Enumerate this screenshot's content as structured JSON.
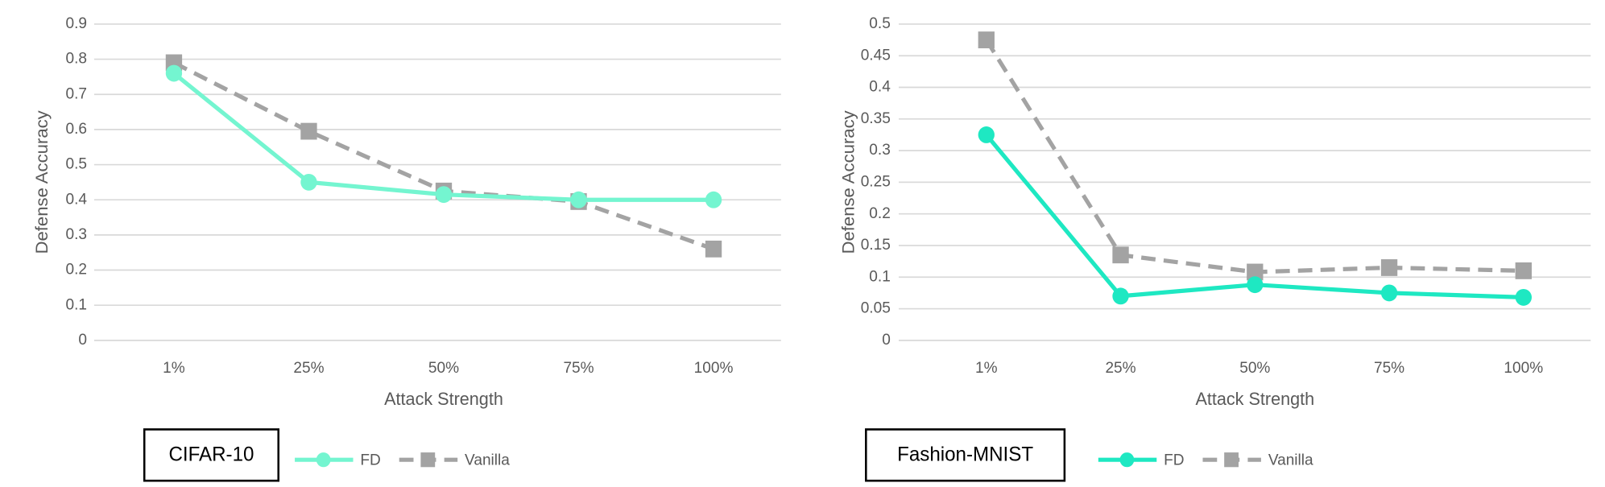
{
  "chart_data": [
    {
      "type": "line",
      "title": "CIFAR-10",
      "x_label": "Attack Strength",
      "y_label": "Defense Accuracy",
      "categories": [
        "1%",
        "25%",
        "50%",
        "75%",
        "100%"
      ],
      "series": [
        {
          "name": "FD",
          "color": "#74f5d0",
          "dashed": false,
          "marker": "circle",
          "values": [
            0.76,
            0.45,
            0.415,
            0.4,
            0.4
          ]
        },
        {
          "name": "Vanilla",
          "color": "#a3a3a3",
          "dashed": true,
          "marker": "square",
          "values": [
            0.79,
            0.595,
            0.425,
            0.395,
            0.26
          ]
        }
      ],
      "ylim": [
        0,
        0.9
      ],
      "yticks": [
        0,
        0.1,
        0.2,
        0.3,
        0.4,
        0.5,
        0.6,
        0.7,
        0.8,
        0.9
      ],
      "grid": true
    },
    {
      "type": "line",
      "title": "Fashion-MNIST",
      "x_label": "Attack Strength",
      "y_label": "Defense Accuracy",
      "categories": [
        "1%",
        "25%",
        "50%",
        "75%",
        "100%"
      ],
      "series": [
        {
          "name": "FD",
          "color": "#1ee8c2",
          "dashed": false,
          "marker": "circle",
          "values": [
            0.325,
            0.07,
            0.088,
            0.075,
            0.068
          ]
        },
        {
          "name": "Vanilla",
          "color": "#a3a3a3",
          "dashed": true,
          "marker": "square",
          "values": [
            0.475,
            0.135,
            0.108,
            0.115,
            0.11
          ]
        }
      ],
      "ylim": [
        0,
        0.5
      ],
      "yticks": [
        0,
        0.05,
        0.1,
        0.15,
        0.2,
        0.25,
        0.3,
        0.35,
        0.4,
        0.45,
        0.5
      ],
      "grid": true
    }
  ]
}
